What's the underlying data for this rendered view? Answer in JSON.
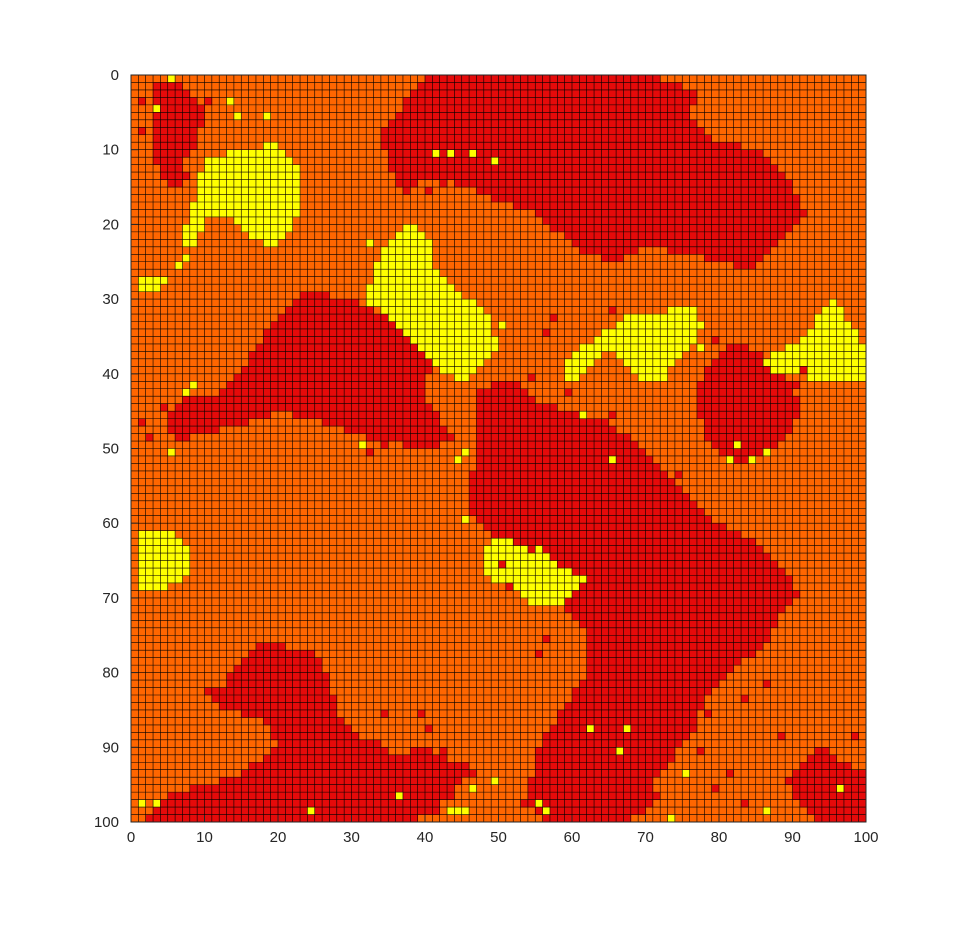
{
  "chart_data": {
    "type": "heatmap",
    "title": "",
    "xlabel": "",
    "ylabel": "",
    "grid_size": [
      100,
      100
    ],
    "xlim": [
      0,
      100
    ],
    "ylim": [
      100,
      0
    ],
    "y_direction": "reversed",
    "x_ticks": [
      "0",
      "10",
      "20",
      "30",
      "40",
      "50",
      "60",
      "70",
      "80",
      "90",
      "100"
    ],
    "y_ticks": [
      "0",
      "10",
      "20",
      "30",
      "40",
      "50",
      "60",
      "70",
      "80",
      "90",
      "100"
    ],
    "cell_edge_color": "#000000",
    "states": [
      {
        "value": 1,
        "color": "#ff6600"
      },
      {
        "value": 2,
        "color": "#e50a0a"
      },
      {
        "value": 3,
        "color": "#ffff00"
      }
    ],
    "background_state": 1,
    "regions": [
      {
        "state": 2,
        "x": [
          25,
          18,
          14,
          13,
          10,
          12,
          18,
          20,
          17,
          14,
          10,
          6,
          4,
          2,
          3,
          2,
          1,
          4,
          8,
          12,
          16,
          20,
          24,
          30,
          34,
          38,
          41,
          47,
          40,
          36,
          33,
          30,
          28,
          26
        ],
        "y": [
          77,
          76,
          79,
          82,
          82,
          85,
          86,
          90,
          92,
          94,
          95,
          96,
          98,
          99,
          100,
          100,
          100,
          100,
          100,
          100,
          100,
          100,
          100,
          100,
          100,
          100,
          99,
          93,
          90,
          91,
          89,
          88,
          85,
          78
        ]
      },
      {
        "state": 2,
        "x": [
          3,
          6,
          8,
          10,
          9,
          7,
          8,
          6,
          4,
          3
        ],
        "y": [
          1,
          1,
          2,
          5,
          9,
          12,
          14,
          15,
          13,
          11
        ]
      },
      {
        "state": 2,
        "x": [
          40,
          50,
          62,
          70,
          77,
          76,
          80,
          86,
          90,
          92,
          90,
          87,
          84,
          80,
          76,
          70,
          66,
          62,
          58,
          54,
          50,
          46,
          43,
          40,
          37,
          35,
          34
        ],
        "y": [
          0,
          0,
          0,
          0,
          2,
          6,
          9,
          10,
          15,
          19,
          21,
          24,
          26,
          25,
          24,
          23,
          25,
          24,
          21,
          18,
          17,
          15,
          14,
          14,
          16,
          12,
          8
        ]
      },
      {
        "state": 2,
        "x": [
          20,
          24,
          30,
          36,
          41,
          40,
          42,
          44,
          40,
          35,
          30,
          25,
          20,
          15,
          10,
          6,
          5,
          8,
          12,
          15,
          18,
          20
        ],
        "y": [
          33,
          29,
          30,
          33,
          37,
          43,
          46,
          49,
          50,
          49,
          48,
          46,
          45,
          47,
          48,
          49,
          46,
          43,
          43,
          40,
          35,
          33
        ]
      },
      {
        "state": 2,
        "x": [
          47,
          52,
          56,
          60,
          64,
          70,
          75,
          80,
          86,
          90,
          91,
          88,
          86,
          82,
          80,
          78,
          76,
          73,
          70,
          70,
          65,
          60,
          56,
          54,
          55,
          58,
          62,
          62,
          58,
          54,
          50,
          48,
          46,
          47
        ],
        "y": [
          42,
          41,
          44,
          45,
          46,
          50,
          55,
          60,
          63,
          67,
          70,
          73,
          77,
          79,
          82,
          84,
          89,
          92,
          94,
          96,
          100,
          100,
          100,
          97,
          91,
          86,
          80,
          75,
          70,
          66,
          63,
          60,
          58,
          49
        ]
      },
      {
        "state": 2,
        "x": [
          78,
          82,
          86,
          89,
          91,
          90,
          86,
          82,
          80,
          78,
          77
        ],
        "y": [
          39,
          36,
          37,
          40,
          44,
          48,
          51,
          52,
          50,
          48,
          43
        ]
      },
      {
        "state": 2,
        "x": [
          62,
          68,
          73,
          75,
          74,
          72,
          71,
          72,
          70,
          68,
          65,
          62,
          60
        ],
        "y": [
          88,
          87,
          87,
          88,
          91,
          94,
          95,
          97,
          98,
          100,
          100,
          100,
          95
        ]
      },
      {
        "state": 2,
        "x": [
          90,
          94,
          97,
          100,
          100,
          97,
          94,
          91,
          90
        ],
        "y": [
          94,
          89,
          92,
          93,
          100,
          100,
          100,
          98,
          96
        ]
      },
      {
        "state": 3,
        "x": [
          10,
          16,
          20,
          23,
          23,
          21,
          19,
          17,
          15,
          13,
          11,
          10,
          8,
          6,
          5,
          4,
          1,
          1,
          5,
          8,
          7,
          9
        ],
        "y": [
          11,
          10,
          9,
          13,
          18,
          22,
          23,
          22,
          20,
          19,
          19,
          20,
          24,
          26,
          28,
          29,
          29,
          27,
          27,
          25,
          21,
          16
        ]
      },
      {
        "state": 3,
        "x": [
          34,
          36,
          37,
          39,
          41,
          41,
          44,
          46,
          49,
          50,
          48,
          45,
          43,
          40,
          37,
          35,
          33,
          32,
          33
        ],
        "y": [
          24,
          22,
          20,
          20,
          22,
          25,
          28,
          30,
          32,
          37,
          39,
          41,
          40,
          37,
          34,
          32,
          31,
          30,
          27
        ]
      },
      {
        "state": 3,
        "x": [
          59,
          62,
          65,
          68,
          72,
          75,
          78,
          77,
          74,
          73,
          70,
          68,
          66,
          63,
          60,
          59
        ],
        "y": [
          38,
          36,
          34,
          32,
          32,
          31,
          33,
          36,
          38,
          41,
          41,
          40,
          37,
          38,
          42,
          40
        ]
      },
      {
        "state": 3,
        "x": [
          86,
          90,
          92,
          94,
          96,
          100,
          100,
          97,
          94,
          91,
          88
        ],
        "y": [
          38,
          36,
          35,
          31,
          30,
          37,
          41,
          41,
          41,
          40,
          40
        ]
      },
      {
        "state": 3,
        "x": [
          1,
          5,
          8,
          8,
          6,
          4,
          1
        ],
        "y": [
          61,
          61,
          63,
          67,
          68,
          69,
          69
        ]
      },
      {
        "state": 3,
        "x": [
          48,
          51,
          53,
          56,
          59,
          62,
          60,
          58,
          55,
          52,
          50,
          48
        ],
        "y": [
          63,
          62,
          63,
          63,
          66,
          67,
          70,
          71,
          71,
          69,
          68,
          67
        ]
      }
    ],
    "speckles": [
      {
        "state": 3,
        "points": [
          [
            6,
            1
          ],
          [
            4,
            5
          ],
          [
            15,
            6
          ],
          [
            19,
            6
          ],
          [
            42,
            11
          ],
          [
            44,
            11
          ],
          [
            47,
            11
          ],
          [
            50,
            12
          ],
          [
            33,
            23
          ],
          [
            35,
            25
          ],
          [
            48,
            33
          ],
          [
            51,
            34
          ],
          [
            68,
            36
          ],
          [
            77,
            32
          ],
          [
            78,
            37
          ],
          [
            8,
            43
          ],
          [
            9,
            42
          ],
          [
            6,
            51
          ],
          [
            32,
            50
          ],
          [
            45,
            52
          ],
          [
            46,
            51
          ],
          [
            46,
            60
          ],
          [
            55,
            69
          ],
          [
            63,
            88
          ],
          [
            68,
            88
          ],
          [
            67,
            91
          ],
          [
            76,
            94
          ],
          [
            74,
            100
          ],
          [
            80,
            96
          ],
          [
            87,
            99
          ],
          [
            97,
            96
          ],
          [
            85,
            52
          ],
          [
            87,
            51
          ],
          [
            83,
            50
          ],
          [
            82,
            52
          ],
          [
            66,
            52
          ],
          [
            62,
            46
          ],
          [
            2,
            98
          ],
          [
            4,
            98
          ],
          [
            25,
            99
          ],
          [
            45,
            99
          ],
          [
            44,
            99
          ],
          [
            46,
            99
          ],
          [
            56,
            98
          ],
          [
            57,
            99
          ],
          [
            47,
            96
          ],
          [
            37,
            97
          ],
          [
            50,
            95
          ],
          [
            14,
            4
          ],
          [
            19,
            19
          ],
          [
            55,
            67
          ],
          [
            68,
            39
          ]
        ]
      },
      {
        "state": 2,
        "points": [
          [
            41,
            16
          ],
          [
            43,
            15
          ],
          [
            46,
            10
          ],
          [
            48,
            14
          ],
          [
            56,
            14
          ],
          [
            60,
            17
          ],
          [
            73,
            22
          ],
          [
            66,
            32
          ],
          [
            58,
            33
          ],
          [
            57,
            35
          ],
          [
            55,
            41
          ],
          [
            60,
            43
          ],
          [
            61,
            47
          ],
          [
            66,
            46
          ],
          [
            28,
            43
          ],
          [
            33,
            51
          ],
          [
            35,
            50
          ],
          [
            30,
            42
          ],
          [
            80,
            36
          ],
          [
            85,
            38
          ],
          [
            91,
            42
          ],
          [
            92,
            40
          ],
          [
            75,
            54
          ],
          [
            73,
            56
          ],
          [
            55,
            64
          ],
          [
            51,
            66
          ],
          [
            52,
            69
          ],
          [
            57,
            76
          ],
          [
            56,
            78
          ],
          [
            35,
            86
          ],
          [
            36,
            93
          ],
          [
            40,
            86
          ],
          [
            41,
            88
          ],
          [
            43,
            91
          ],
          [
            44,
            97
          ],
          [
            42,
            99
          ],
          [
            38,
            99
          ],
          [
            47,
            94
          ],
          [
            56,
            96
          ],
          [
            54,
            98
          ],
          [
            68,
            100
          ],
          [
            70,
            99
          ],
          [
            78,
            91
          ],
          [
            79,
            86
          ],
          [
            84,
            84
          ],
          [
            87,
            82
          ],
          [
            89,
            89
          ],
          [
            99,
            89
          ],
          [
            98,
            96
          ],
          [
            95,
            99
          ],
          [
            90,
            95
          ],
          [
            2,
            47
          ],
          [
            3,
            49
          ],
          [
            6,
            48
          ],
          [
            10,
            44
          ],
          [
            5,
            45
          ],
          [
            2,
            4
          ],
          [
            2,
            8
          ],
          [
            11,
            4
          ],
          [
            24,
            85
          ],
          [
            25,
            83
          ],
          [
            27,
            84
          ],
          [
            30,
            88
          ],
          [
            31,
            89
          ],
          [
            80,
            96
          ],
          [
            82,
            94
          ],
          [
            84,
            98
          ]
        ]
      }
    ]
  }
}
